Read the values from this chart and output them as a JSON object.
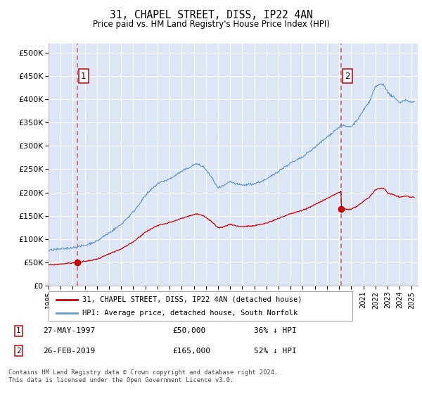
{
  "title": "31, CHAPEL STREET, DISS, IP22 4AN",
  "subtitle": "Price paid vs. HM Land Registry's House Price Index (HPI)",
  "yticks": [
    0,
    50000,
    100000,
    150000,
    200000,
    250000,
    300000,
    350000,
    400000,
    450000,
    500000
  ],
  "ytick_labels": [
    "£0",
    "£50K",
    "£100K",
    "£150K",
    "£200K",
    "£250K",
    "£300K",
    "£350K",
    "£400K",
    "£450K",
    "£500K"
  ],
  "xlim_start": 1995.0,
  "xlim_end": 2025.5,
  "ylim": [
    0,
    520000
  ],
  "hpi_color": "#6699cc",
  "price_color": "#cc0000",
  "background_color": "#dde6f5",
  "grid_color": "#ffffff",
  "marker1_x": 1997.38,
  "marker1_y": 50000,
  "marker2_x": 2019.15,
  "marker2_y": 165000,
  "legend_line1": "31, CHAPEL STREET, DISS, IP22 4AN (detached house)",
  "legend_line2": "HPI: Average price, detached house, South Norfolk",
  "footnote": "Contains HM Land Registry data © Crown copyright and database right 2024.\nThis data is licensed under the Open Government Licence v3.0.",
  "xtick_years": [
    1995,
    1996,
    1997,
    1998,
    1999,
    2000,
    2001,
    2002,
    2003,
    2004,
    2005,
    2006,
    2007,
    2008,
    2009,
    2010,
    2011,
    2012,
    2013,
    2014,
    2015,
    2016,
    2017,
    2018,
    2019,
    2020,
    2021,
    2022,
    2023,
    2024,
    2025
  ]
}
